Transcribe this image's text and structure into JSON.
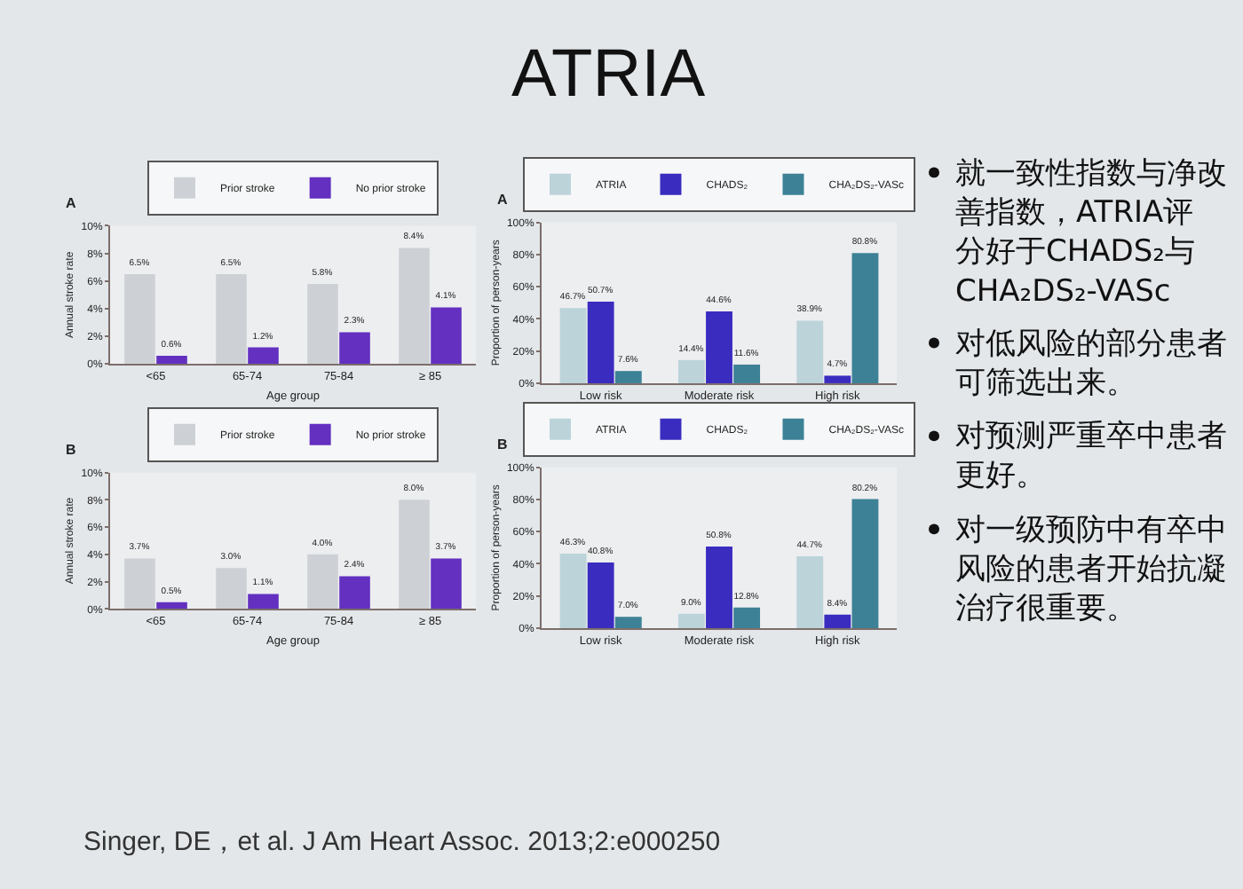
{
  "chart_data": [
    {
      "type": "other",
      "title": "ATRIA",
      "annotations": [
        "Singer, DE，et al. J Am Heart Assoc. 2013;2:e000250"
      ]
    },
    {
      "type": "bar",
      "title": "A",
      "xlabel": "Age group",
      "ylabel": "Annual stroke rate",
      "categories": [
        "<65",
        "65-74",
        "75-84",
        "≥ 85"
      ],
      "series": [
        {
          "name": "Prior stroke",
          "color": "#cdd1d5",
          "values": [
            6.5,
            6.5,
            5.8,
            8.4
          ],
          "value_labels": [
            "6.5%",
            "6.5%",
            "5.8%",
            "8.4%"
          ]
        },
        {
          "name": "No prior stroke",
          "color": "#6330c0",
          "values": [
            0.6,
            1.2,
            2.3,
            4.1
          ],
          "value_labels": [
            "0.6%",
            "1.2%",
            "2.3%",
            "4.1%"
          ]
        }
      ],
      "ylim": [
        0,
        10
      ],
      "yticks": [
        {
          "value": 0,
          "label": "0%"
        },
        {
          "value": 2,
          "label": "2%"
        },
        {
          "value": 4,
          "label": "4%"
        },
        {
          "value": 6,
          "label": "6%"
        },
        {
          "value": 8,
          "label": "8%"
        },
        {
          "value": 10,
          "label": "10%"
        }
      ],
      "legend": "top"
    },
    {
      "type": "bar",
      "title": "A",
      "ylabel": "Proportion of person-years",
      "categories": [
        "Low risk",
        "Moderate risk",
        "High risk"
      ],
      "series": [
        {
          "name": "ATRIA",
          "color": "#bcd3da",
          "values": [
            46.7,
            14.4,
            38.9
          ],
          "value_labels": [
            "46.7%",
            "14.4%",
            "38.9%"
          ]
        },
        {
          "name": "CHADS₂",
          "color": "#3b2cc0",
          "values": [
            50.7,
            44.6,
            4.7
          ],
          "value_labels": [
            "50.7%",
            "44.6%",
            "4.7%"
          ]
        },
        {
          "name": "CHA₂DS₂-VASc",
          "color": "#3d8196",
          "values": [
            7.6,
            11.6,
            80.8
          ],
          "value_labels": [
            "7.6%",
            "11.6%",
            "80.8%"
          ]
        }
      ],
      "ylim": [
        0,
        100
      ],
      "yticks": [
        {
          "value": 0,
          "label": "0%"
        },
        {
          "value": 20,
          "label": "20%"
        },
        {
          "value": 40,
          "label": "40%"
        },
        {
          "value": 60,
          "label": "60%"
        },
        {
          "value": 80,
          "label": "80%"
        },
        {
          "value": 100,
          "label": "100%"
        }
      ],
      "legend": "top"
    },
    {
      "type": "bar",
      "title": "B",
      "xlabel": "Age group",
      "ylabel": "Annual stroke rate",
      "categories": [
        "<65",
        "65-74",
        "75-84",
        "≥ 85"
      ],
      "series": [
        {
          "name": "Prior stroke",
          "color": "#cdd1d5",
          "values": [
            3.7,
            3.0,
            4.0,
            8.0
          ],
          "value_labels": [
            "3.7%",
            "3.0%",
            "4.0%",
            "8.0%"
          ]
        },
        {
          "name": "No prior stroke",
          "color": "#6330c0",
          "values": [
            0.5,
            1.1,
            2.4,
            3.7
          ],
          "value_labels": [
            "0.5%",
            "1.1%",
            "2.4%",
            "3.7%"
          ]
        }
      ],
      "ylim": [
        0,
        10
      ],
      "yticks": [
        {
          "value": 0,
          "label": "0%"
        },
        {
          "value": 2,
          "label": "2%"
        },
        {
          "value": 4,
          "label": "4%"
        },
        {
          "value": 6,
          "label": "6%"
        },
        {
          "value": 8,
          "label": "8%"
        },
        {
          "value": 10,
          "label": "10%"
        }
      ],
      "legend": "top"
    },
    {
      "type": "bar",
      "title": "B",
      "ylabel": "Proportion of person-years",
      "categories": [
        "Low risk",
        "Moderate risk",
        "High risk"
      ],
      "series": [
        {
          "name": "ATRIA",
          "color": "#bcd3da",
          "values": [
            46.3,
            9.0,
            44.7
          ],
          "value_labels": [
            "46.3%",
            "9.0%",
            "44.7%"
          ]
        },
        {
          "name": "CHADS₂",
          "color": "#3b2cc0",
          "values": [
            40.8,
            50.8,
            8.4
          ],
          "value_labels": [
            "40.8%",
            "50.8%",
            "8.4%"
          ]
        },
        {
          "name": "CHA₂DS₂-VASc",
          "color": "#3d8196",
          "values": [
            7.0,
            12.8,
            80.2
          ],
          "value_labels": [
            "7.0%",
            "12.8%",
            "80.2%"
          ]
        }
      ],
      "ylim": [
        0,
        100
      ],
      "yticks": [
        {
          "value": 0,
          "label": "0%"
        },
        {
          "value": 20,
          "label": "20%"
        },
        {
          "value": 40,
          "label": "40%"
        },
        {
          "value": 60,
          "label": "60%"
        },
        {
          "value": 80,
          "label": "80%"
        },
        {
          "value": 100,
          "label": "100%"
        }
      ],
      "legend": "top"
    },
    {
      "type": "other",
      "annotations": [
        "就一致性指数与净改善指数，ATRIA评分好于CHADS₂与CHA₂DS₂-VASc",
        "对低风险的部分患者可筛选出来。",
        "对预测严重卒中患者更好。",
        "对一级预防中有卒中风险的患者开始抗凝治疗很重要。"
      ]
    }
  ]
}
